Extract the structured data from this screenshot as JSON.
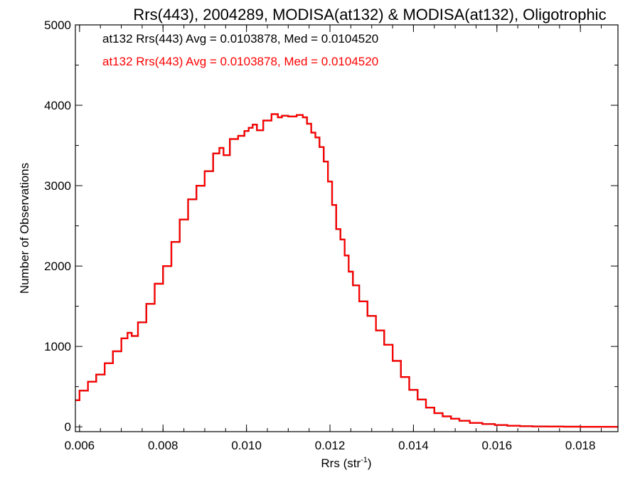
{
  "chart_data": {
    "type": "line",
    "title": "Rrs(443), 2004289, MODISA(at132) & MODISA(at132), Oligotrophic",
    "xlabel_base": "Rrs (str",
    "xlabel_sup": "-1",
    "xlabel_end": ")",
    "ylabel": "Number of Observations",
    "xlim": [
      0.0059,
      0.0189
    ],
    "ylim": [
      -60,
      5000
    ],
    "xticks": [
      0.006,
      0.008,
      0.01,
      0.012,
      0.014,
      0.016,
      0.018
    ],
    "xtick_labels": [
      "0.006",
      "0.008",
      "0.010",
      "0.012",
      "0.014",
      "0.016",
      "0.018"
    ],
    "yticks": [
      0,
      1000,
      2000,
      3000,
      4000,
      5000
    ],
    "ytick_labels": [
      "0",
      "1000",
      "2000",
      "3000",
      "4000",
      "5000"
    ],
    "grid": false,
    "annotations": [
      {
        "text": "at132 Rrs(443) Avg = 0.0103878, Med = 0.0104520",
        "color": "#000000"
      },
      {
        "text": "at132 Rrs(443) Avg = 0.0103878, Med = 0.0104520",
        "color": "#ff0000"
      }
    ],
    "series": [
      {
        "color": "#000000",
        "x": [
          0.0059,
          0.0061,
          0.0063,
          0.0065,
          0.0067,
          0.0069,
          0.0071,
          0.0072,
          0.0073,
          0.0075,
          0.0077,
          0.0079,
          0.0081,
          0.0083,
          0.0085,
          0.0087,
          0.0089,
          0.0091,
          0.0093,
          0.0094,
          0.0095,
          0.0097,
          0.0099,
          0.01,
          0.0101,
          0.0102,
          0.0103,
          0.0105,
          0.0107,
          0.0108,
          0.0109,
          0.0111,
          0.0113,
          0.0114,
          0.0115,
          0.0116,
          0.0117,
          0.0118,
          0.0119,
          0.012,
          0.0121,
          0.0122,
          0.0123,
          0.0124,
          0.0125,
          0.0126,
          0.0128,
          0.013,
          0.0132,
          0.0134,
          0.0136,
          0.0138,
          0.014,
          0.0142,
          0.0144,
          0.0146,
          0.0148,
          0.015,
          0.0152,
          0.0155,
          0.0158,
          0.0161,
          0.0164,
          0.0167,
          0.017,
          0.0174,
          0.0178,
          0.0182,
          0.0186,
          0.0189
        ],
        "y": [
          330,
          450,
          560,
          650,
          790,
          940,
          1100,
          1170,
          1130,
          1300,
          1530,
          1780,
          2000,
          2300,
          2580,
          2830,
          3000,
          3180,
          3400,
          3470,
          3380,
          3580,
          3620,
          3680,
          3720,
          3760,
          3690,
          3810,
          3890,
          3850,
          3870,
          3860,
          3880,
          3850,
          3770,
          3660,
          3600,
          3480,
          3300,
          3050,
          2760,
          2460,
          2330,
          2130,
          1930,
          1760,
          1560,
          1380,
          1200,
          1020,
          820,
          620,
          460,
          340,
          240,
          170,
          130,
          100,
          75,
          50,
          35,
          22,
          14,
          8,
          5,
          3,
          2,
          1,
          1,
          0
        ]
      },
      {
        "color": "#ff0000",
        "x": [
          0.0059,
          0.0061,
          0.0063,
          0.0065,
          0.0067,
          0.0069,
          0.0071,
          0.0072,
          0.0073,
          0.0075,
          0.0077,
          0.0079,
          0.0081,
          0.0083,
          0.0085,
          0.0087,
          0.0089,
          0.0091,
          0.0093,
          0.0094,
          0.0095,
          0.0097,
          0.0099,
          0.01,
          0.0101,
          0.0102,
          0.0103,
          0.0105,
          0.0107,
          0.0108,
          0.0109,
          0.0111,
          0.0113,
          0.0114,
          0.0115,
          0.0116,
          0.0117,
          0.0118,
          0.0119,
          0.012,
          0.0121,
          0.0122,
          0.0123,
          0.0124,
          0.0125,
          0.0126,
          0.0128,
          0.013,
          0.0132,
          0.0134,
          0.0136,
          0.0138,
          0.014,
          0.0142,
          0.0144,
          0.0146,
          0.0148,
          0.015,
          0.0152,
          0.0155,
          0.0158,
          0.0161,
          0.0164,
          0.0167,
          0.017,
          0.0174,
          0.0178,
          0.0182,
          0.0186,
          0.0189
        ],
        "y": [
          330,
          450,
          560,
          650,
          790,
          940,
          1100,
          1170,
          1130,
          1300,
          1530,
          1780,
          2000,
          2300,
          2580,
          2830,
          3000,
          3180,
          3400,
          3470,
          3380,
          3580,
          3620,
          3680,
          3720,
          3760,
          3690,
          3810,
          3890,
          3850,
          3870,
          3860,
          3880,
          3850,
          3770,
          3660,
          3600,
          3480,
          3300,
          3050,
          2760,
          2460,
          2330,
          2130,
          1930,
          1760,
          1560,
          1380,
          1200,
          1020,
          820,
          620,
          460,
          340,
          240,
          170,
          130,
          100,
          75,
          50,
          35,
          22,
          14,
          8,
          5,
          3,
          2,
          1,
          1,
          0
        ]
      }
    ]
  }
}
